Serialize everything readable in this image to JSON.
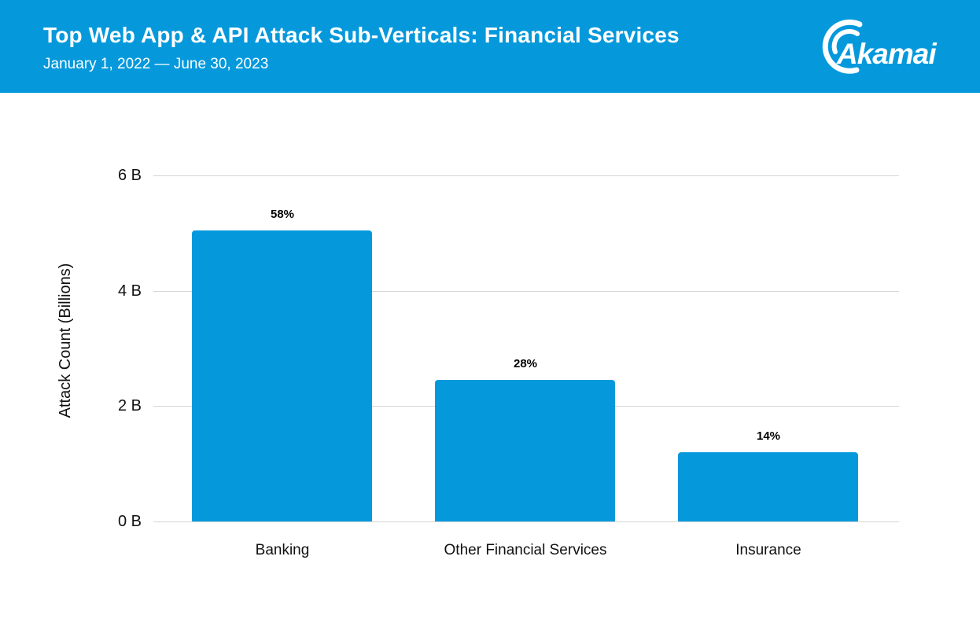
{
  "header": {
    "title": "Top Web App & API Attack Sub-Verticals: Financial Services",
    "subtitle": "January 1, 2022 — June 30, 2023",
    "logo_text": "Akamai",
    "background_color": "#0599DC",
    "text_color": "#FFFFFF"
  },
  "chart_data": {
    "type": "bar",
    "title": "Top Web App & API Attack Sub-Verticals: Financial Services",
    "subtitle": "January 1, 2022 — June 30, 2023",
    "categories": [
      "Banking",
      "Other Financial Services",
      "Insurance"
    ],
    "values": [
      5.05,
      2.45,
      1.2
    ],
    "bar_labels": [
      "58%",
      "28%",
      "14%"
    ],
    "xlabel": "",
    "ylabel": "Attack Count (Billions)",
    "ylim": [
      0,
      6
    ],
    "yticks": [
      0,
      2,
      4,
      6
    ],
    "ytick_labels": [
      "0 B",
      "2 B",
      "4 B",
      "6 B"
    ],
    "grid": true,
    "legend": false,
    "bar_color": "#0599DC",
    "gridline_color": "#D6D6D6",
    "label_color": "#111111"
  }
}
